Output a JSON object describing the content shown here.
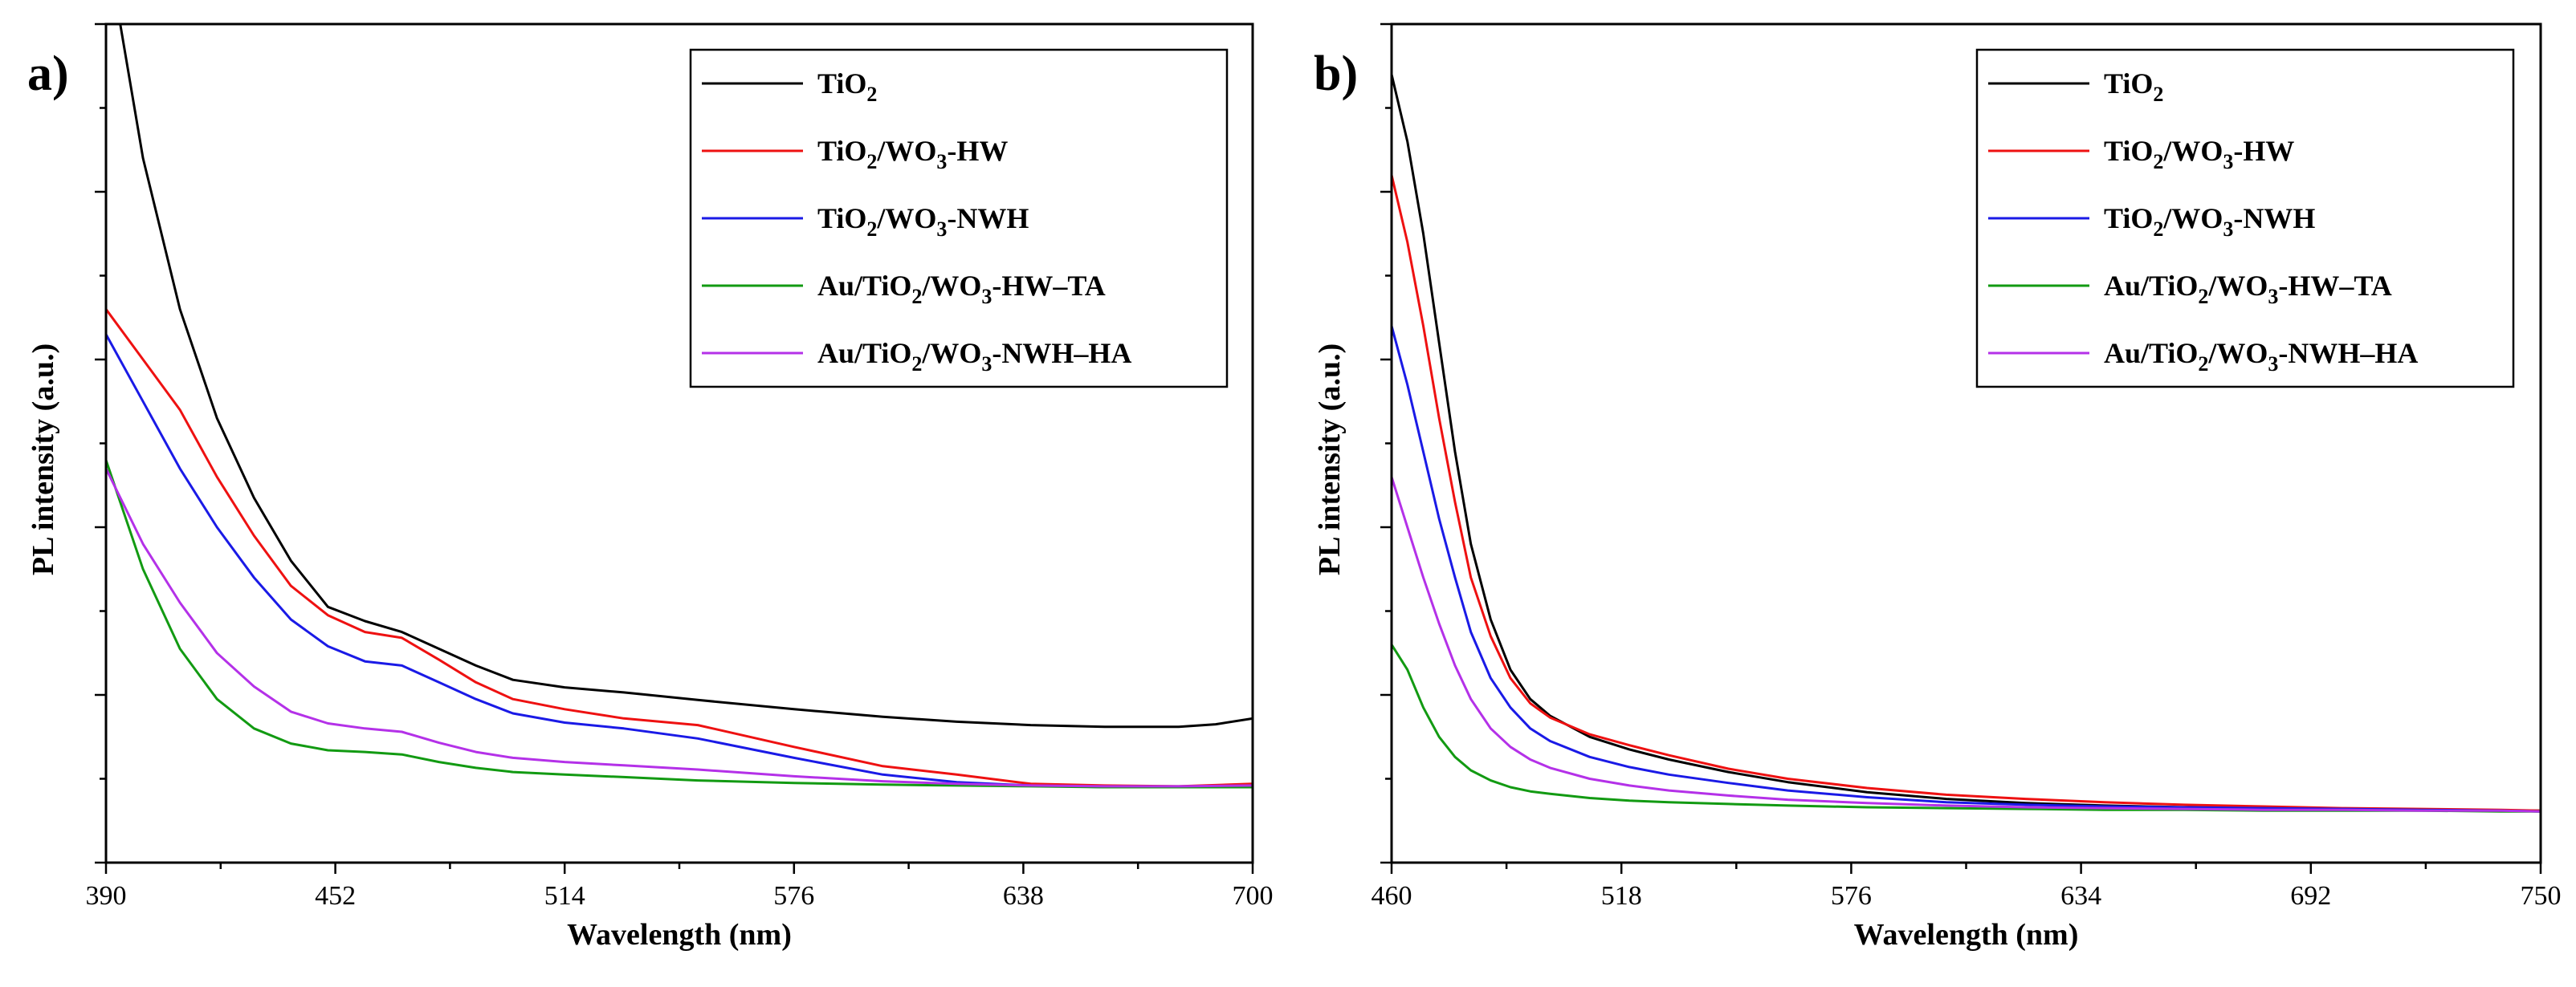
{
  "chart_data": [
    {
      "panel_label": "a)",
      "type": "line",
      "xlabel": "Wavelength (nm)",
      "ylabel": "PL intensity (a.u.)",
      "xlim": [
        390,
        700
      ],
      "ylim": [
        0,
        100
      ],
      "xticks": [
        390,
        452,
        514,
        576,
        638,
        700
      ],
      "grid": false,
      "legend_position": "top-right",
      "series": [
        {
          "name": "TiO2",
          "legend": [
            "TiO",
            "2",
            ""
          ],
          "color": "#000000",
          "x": [
            390,
            400,
            410,
            420,
            430,
            440,
            450,
            460,
            470,
            480,
            490,
            500,
            514,
            530,
            550,
            576,
            600,
            620,
            640,
            660,
            680,
            690,
            700
          ],
          "y": [
            110,
            84,
            66,
            53,
            43.5,
            36,
            30.5,
            28.8,
            27.5,
            25.5,
            23.5,
            21.8,
            20.9,
            20.3,
            19.4,
            18.3,
            17.4,
            16.8,
            16.4,
            16.2,
            16.2,
            16.5,
            17.2
          ]
        },
        {
          "name": "TiO2/WO3-HW",
          "legend": [
            "TiO",
            "2",
            "/WO",
            "3",
            "-HW"
          ],
          "color": "#ee1111",
          "x": [
            390,
            400,
            410,
            420,
            430,
            440,
            450,
            460,
            470,
            480,
            490,
            500,
            514,
            530,
            550,
            576,
            600,
            620,
            640,
            660,
            680,
            700
          ],
          "y": [
            66,
            60,
            54,
            46,
            39,
            33,
            29.5,
            27.5,
            26.8,
            24.2,
            21.5,
            19.5,
            18.3,
            17.2,
            16.4,
            13.8,
            11.5,
            10.5,
            9.4,
            9.2,
            9.1,
            9.4
          ]
        },
        {
          "name": "TiO2/WO3-NWH",
          "legend": [
            "TiO",
            "2",
            "/WO",
            "3",
            "-NWH"
          ],
          "color": "#1a1ae6",
          "x": [
            390,
            400,
            410,
            420,
            430,
            440,
            450,
            460,
            470,
            480,
            490,
            500,
            514,
            530,
            550,
            576,
            600,
            620,
            640,
            660,
            680,
            700
          ],
          "y": [
            63,
            55,
            47,
            40,
            34,
            29,
            25.8,
            24,
            23.5,
            21.5,
            19.5,
            17.8,
            16.7,
            16,
            14.8,
            12.5,
            10.5,
            9.6,
            9.2,
            9.0,
            9.0,
            9.2
          ]
        },
        {
          "name": "Au/TiO2/WO3-HW–TA",
          "legend": [
            "Au/TiO",
            "2",
            "/WO",
            "3",
            "-HW–TA"
          ],
          "color": "#129a12",
          "x": [
            390,
            400,
            410,
            420,
            430,
            440,
            450,
            460,
            470,
            480,
            490,
            500,
            514,
            530,
            550,
            576,
            600,
            620,
            640,
            660,
            680,
            700
          ],
          "y": [
            48,
            35,
            25.5,
            19.5,
            16,
            14.2,
            13.4,
            13.2,
            12.9,
            12,
            11.3,
            10.8,
            10.5,
            10.2,
            9.8,
            9.5,
            9.3,
            9.2,
            9.1,
            9.0,
            9.0,
            9.0
          ]
        },
        {
          "name": "Au/TiO2/WO3-NWH–HA",
          "legend": [
            "Au/TiO",
            "2",
            "/WO",
            "3",
            "-NWH–HA"
          ],
          "color": "#b431e8",
          "x": [
            390,
            400,
            410,
            420,
            430,
            440,
            450,
            460,
            470,
            480,
            490,
            500,
            514,
            530,
            550,
            576,
            600,
            620,
            640,
            660,
            680,
            700
          ],
          "y": [
            47,
            38,
            31,
            25,
            21,
            18,
            16.6,
            16,
            15.6,
            14.3,
            13.2,
            12.5,
            12.0,
            11.6,
            11.1,
            10.3,
            9.7,
            9.4,
            9.2,
            9.1,
            9.1,
            9.2
          ]
        }
      ]
    },
    {
      "panel_label": "b)",
      "type": "line",
      "xlabel": "Wavelength (nm)",
      "ylabel": "PL intensity (a.u.)",
      "xlim": [
        460,
        750
      ],
      "ylim": [
        0,
        100
      ],
      "xticks": [
        460,
        518,
        576,
        634,
        692,
        750
      ],
      "grid": false,
      "legend_position": "top-right",
      "series": [
        {
          "name": "TiO2",
          "legend": [
            "TiO",
            "2",
            ""
          ],
          "color": "#000000",
          "x": [
            460,
            464,
            468,
            472,
            476,
            480,
            485,
            490,
            495,
            500,
            510,
            520,
            530,
            545,
            560,
            580,
            600,
            620,
            640,
            660,
            680,
            700,
            720,
            740,
            750
          ],
          "y": [
            94,
            86,
            75,
            62,
            49,
            38,
            29,
            23,
            19.5,
            17.5,
            15,
            13.5,
            12.3,
            10.8,
            9.6,
            8.4,
            7.6,
            7.1,
            6.8,
            6.6,
            6.5,
            6.4,
            6.3,
            6.2,
            6.2
          ]
        },
        {
          "name": "TiO2/WO3-HW",
          "legend": [
            "TiO",
            "2",
            "/WO",
            "3",
            "-HW"
          ],
          "color": "#ee1111",
          "x": [
            460,
            464,
            468,
            472,
            476,
            480,
            485,
            490,
            495,
            500,
            510,
            520,
            530,
            545,
            560,
            580,
            600,
            620,
            640,
            660,
            680,
            700,
            720,
            740,
            750
          ],
          "y": [
            82,
            74,
            64,
            53,
            43,
            34,
            27,
            22,
            19,
            17.3,
            15.3,
            14,
            12.8,
            11.2,
            10,
            8.9,
            8.1,
            7.6,
            7.2,
            6.9,
            6.7,
            6.5,
            6.4,
            6.3,
            6.2
          ]
        },
        {
          "name": "TiO2/WO3-NWH",
          "legend": [
            "TiO",
            "2",
            "/WO",
            "3",
            "-NWH"
          ],
          "color": "#1a1ae6",
          "x": [
            460,
            464,
            468,
            472,
            476,
            480,
            485,
            490,
            495,
            500,
            510,
            520,
            530,
            545,
            560,
            580,
            600,
            620,
            640,
            660,
            680,
            700,
            720,
            740,
            750
          ],
          "y": [
            64,
            57,
            49,
            41,
            34,
            27.5,
            22,
            18.5,
            16,
            14.5,
            12.6,
            11.4,
            10.5,
            9.5,
            8.6,
            7.8,
            7.2,
            6.9,
            6.7,
            6.6,
            6.5,
            6.4,
            6.3,
            6.2,
            6.1
          ]
        },
        {
          "name": "Au/TiO2/WO3-HW–TA",
          "legend": [
            "Au/TiO",
            "2",
            "/WO",
            "3",
            "-HW–TA"
          ],
          "color": "#129a12",
          "x": [
            460,
            464,
            468,
            472,
            476,
            480,
            485,
            490,
            495,
            500,
            510,
            520,
            530,
            545,
            560,
            580,
            600,
            620,
            640,
            660,
            680,
            700,
            720,
            740,
            750
          ],
          "y": [
            26,
            23,
            18.5,
            15,
            12.6,
            11,
            9.8,
            9.0,
            8.5,
            8.2,
            7.7,
            7.4,
            7.2,
            7.0,
            6.8,
            6.6,
            6.5,
            6.4,
            6.3,
            6.3,
            6.2,
            6.2,
            6.2,
            6.1,
            6.1
          ]
        },
        {
          "name": "Au/TiO2/WO3-NWH–HA",
          "legend": [
            "Au/TiO",
            "2",
            "/WO",
            "3",
            "-NWH–HA"
          ],
          "color": "#b431e8",
          "x": [
            460,
            464,
            468,
            472,
            476,
            480,
            485,
            490,
            495,
            500,
            510,
            520,
            530,
            545,
            560,
            580,
            600,
            620,
            640,
            660,
            680,
            700,
            720,
            740,
            750
          ],
          "y": [
            46,
            40,
            34,
            28.5,
            23.5,
            19.5,
            16,
            13.8,
            12.3,
            11.3,
            10,
            9.2,
            8.6,
            8.0,
            7.5,
            7.1,
            6.8,
            6.6,
            6.5,
            6.4,
            6.3,
            6.3,
            6.2,
            6.2,
            6.1
          ]
        }
      ]
    }
  ]
}
